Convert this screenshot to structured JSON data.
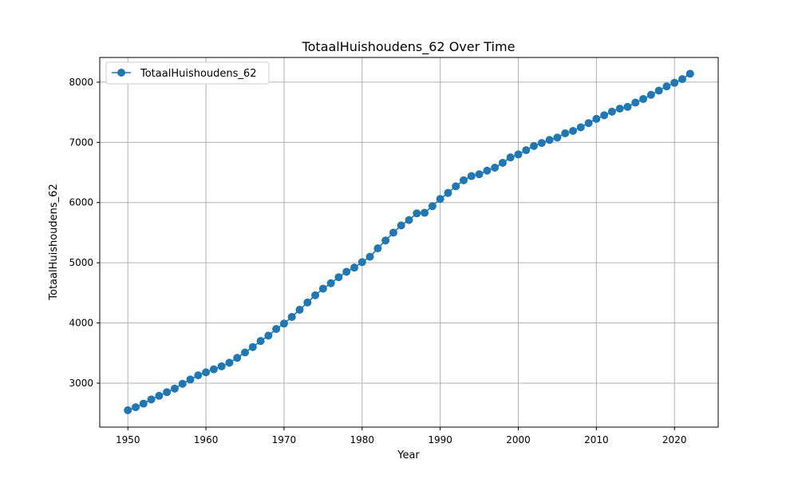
{
  "chart_data": {
    "type": "line",
    "title": "TotaalHuishoudens_62 Over Time",
    "xlabel": "Year",
    "ylabel": "TotaalHuishoudens_62",
    "xlim": [
      1946.4,
      2025.6
    ],
    "ylim": [
      2270,
      8410
    ],
    "x_ticks": [
      "1950",
      "1960",
      "1970",
      "1980",
      "1990",
      "2000",
      "2010",
      "2020"
    ],
    "y_ticks": [
      "3000",
      "4000",
      "5000",
      "6000",
      "7000",
      "8000"
    ],
    "grid": true,
    "legend": "top-left",
    "series": [
      {
        "name": "TotaalHuishoudens_62",
        "color": "#1f77b4",
        "marker": "circle",
        "x": [
          1950,
          1951,
          1952,
          1953,
          1954,
          1955,
          1956,
          1957,
          1958,
          1959,
          1960,
          1961,
          1962,
          1963,
          1964,
          1965,
          1966,
          1967,
          1968,
          1969,
          1970,
          1971,
          1972,
          1973,
          1974,
          1975,
          1976,
          1977,
          1978,
          1979,
          1980,
          1981,
          1982,
          1983,
          1984,
          1985,
          1986,
          1987,
          1988,
          1989,
          1990,
          1991,
          1992,
          1993,
          1994,
          1995,
          1996,
          1997,
          1998,
          1999,
          2000,
          2001,
          2002,
          2003,
          2004,
          2005,
          2006,
          2007,
          2008,
          2009,
          2010,
          2011,
          2012,
          2013,
          2014,
          2015,
          2016,
          2017,
          2018,
          2019,
          2020,
          2021,
          2022
        ],
        "values": [
          2550,
          2600,
          2660,
          2730,
          2790,
          2850,
          2910,
          2990,
          3060,
          3130,
          3180,
          3230,
          3280,
          3340,
          3420,
          3510,
          3600,
          3700,
          3790,
          3900,
          3990,
          4100,
          4220,
          4340,
          4460,
          4570,
          4660,
          4760,
          4850,
          4920,
          5010,
          5100,
          5240,
          5370,
          5500,
          5620,
          5710,
          5820,
          5830,
          5940,
          6060,
          6160,
          6270,
          6370,
          6440,
          6470,
          6530,
          6580,
          6660,
          6750,
          6800,
          6870,
          6940,
          6990,
          7040,
          7080,
          7150,
          7190,
          7250,
          7320,
          7390,
          7450,
          7510,
          7560,
          7590,
          7660,
          7720,
          7790,
          7860,
          7930,
          7990,
          8050,
          8140
        ]
      }
    ]
  }
}
